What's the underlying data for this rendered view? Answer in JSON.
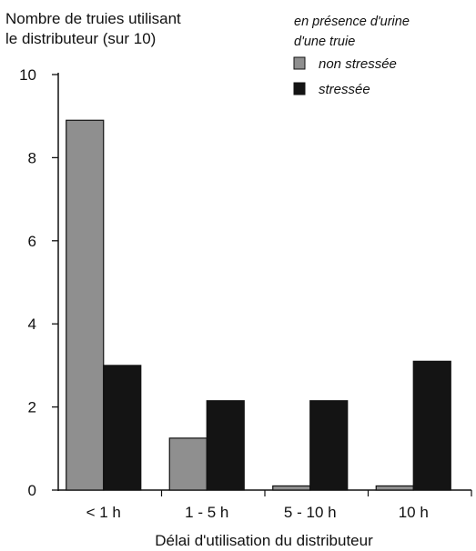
{
  "chart_data": {
    "type": "bar",
    "ylabel_lines": [
      "Nombre de truies utilisant",
      "le distributeur (sur 10)"
    ],
    "xlabel": "Délai d'utilisation du distributeur",
    "legend_title_lines": [
      "en présence d'urine",
      "d'une truie"
    ],
    "legend_placement": "top-right",
    "categories": [
      "< 1 h",
      "1 - 5 h",
      "5 - 10 h",
      "10 h"
    ],
    "series": [
      {
        "name": "non stressée",
        "color": "#8f8f8f",
        "values": [
          8.9,
          1.25,
          0.1,
          0.1
        ]
      },
      {
        "name": "stressée",
        "color": "#141414",
        "values": [
          3.0,
          2.15,
          2.15,
          3.1
        ]
      }
    ],
    "ylim": [
      0,
      10
    ],
    "yticks": [
      "0",
      "2",
      "4",
      "6",
      "8",
      "10"
    ],
    "grid": false
  }
}
